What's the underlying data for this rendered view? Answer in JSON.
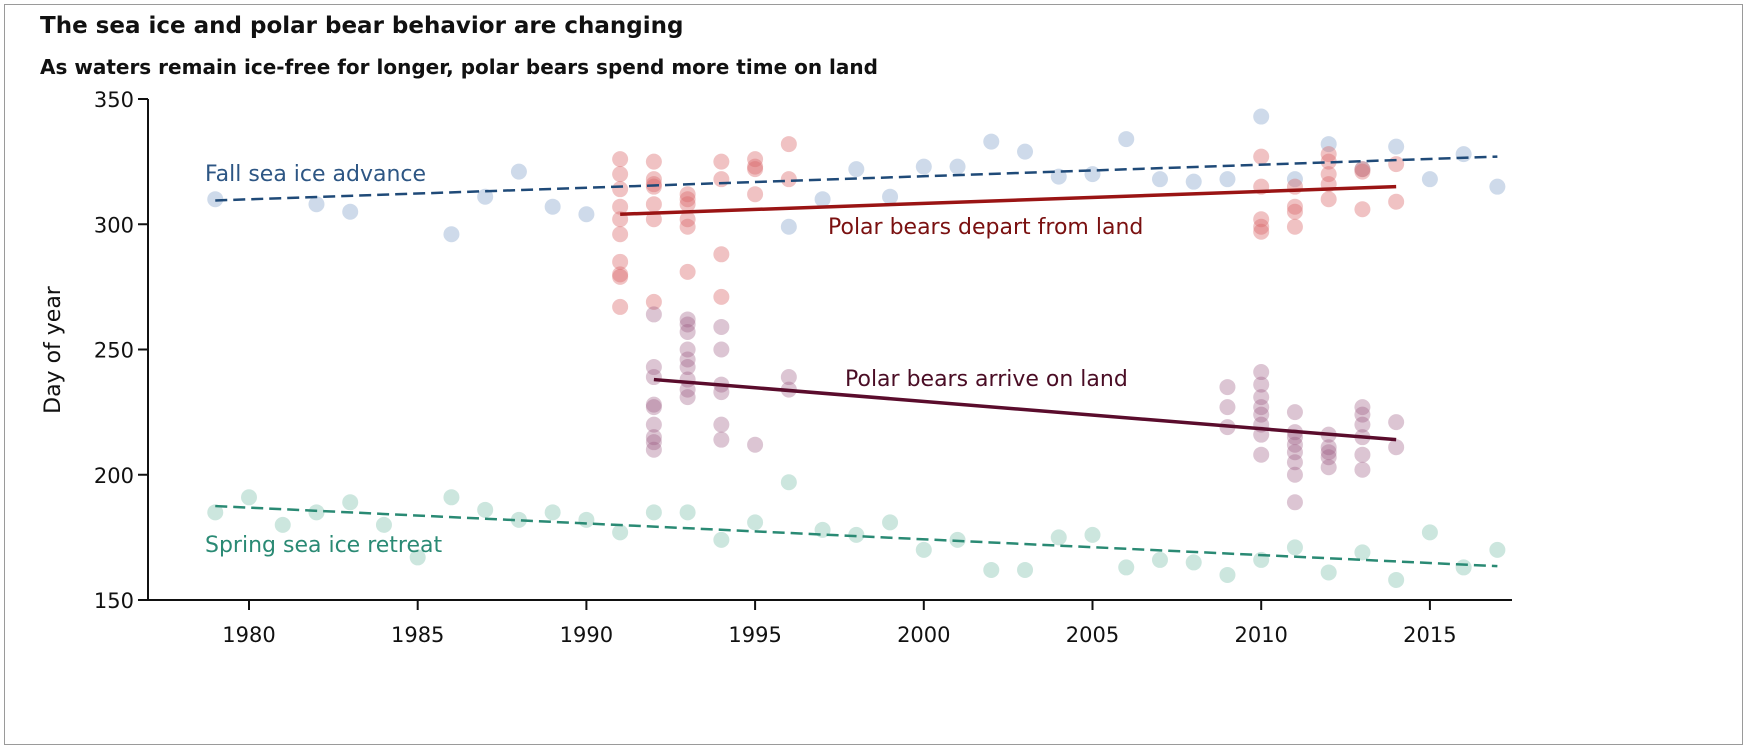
{
  "chart_data": {
    "type": "scatter",
    "title": "The sea ice and polar bear behavior are changing",
    "subtitle": "As waters remain ice-free for longer, polar bears spend more time on land",
    "xlabel": "",
    "ylabel": "Day of year",
    "xlim": [
      1977,
      2018
    ],
    "ylim": [
      150,
      350
    ],
    "xticks": [
      "1980",
      "1985",
      "1990",
      "1995",
      "2000",
      "2005",
      "2010",
      "2015"
    ],
    "yticks": [
      "150",
      "200",
      "250",
      "300",
      "350"
    ],
    "grid": false,
    "series": [
      {
        "name": "Fall sea ice advance",
        "color": "#c5d4e6",
        "trend_color": "#1f4a78",
        "trend_style": "dashed",
        "trend": [
          [
            1979,
            309.5
          ],
          [
            2017,
            327
          ]
        ],
        "points": [
          [
            1979,
            310
          ],
          [
            1982,
            308
          ],
          [
            1983,
            305
          ],
          [
            1986,
            296
          ],
          [
            1987,
            311
          ],
          [
            1988,
            321
          ],
          [
            1989,
            307
          ],
          [
            1990,
            304
          ],
          [
            1996,
            299
          ],
          [
            1997,
            310
          ],
          [
            1998,
            322
          ],
          [
            1999,
            311
          ],
          [
            2000,
            323
          ],
          [
            2001,
            323
          ],
          [
            2002,
            333
          ],
          [
            2003,
            329
          ],
          [
            2004,
            319
          ],
          [
            2005,
            320
          ],
          [
            2006,
            334
          ],
          [
            2007,
            318
          ],
          [
            2008,
            317
          ],
          [
            2009,
            318
          ],
          [
            2010,
            343
          ],
          [
            2011,
            318
          ],
          [
            2012,
            332
          ],
          [
            2013,
            322
          ],
          [
            2014,
            331
          ],
          [
            2015,
            318
          ],
          [
            2016,
            328
          ],
          [
            2017,
            315
          ]
        ]
      },
      {
        "name": "Spring sea ice retreat",
        "color": "#c3e2d8",
        "trend_color": "#2a8a74",
        "trend_style": "dashed",
        "trend": [
          [
            1979,
            187.5
          ],
          [
            2017,
            163.5
          ]
        ],
        "points": [
          [
            1979,
            185
          ],
          [
            1980,
            191
          ],
          [
            1981,
            180
          ],
          [
            1982,
            185
          ],
          [
            1983,
            189
          ],
          [
            1984,
            180
          ],
          [
            1985,
            167
          ],
          [
            1986,
            191
          ],
          [
            1987,
            186
          ],
          [
            1988,
            182
          ],
          [
            1989,
            185
          ],
          [
            1990,
            182
          ],
          [
            1991,
            177
          ],
          [
            1992,
            185
          ],
          [
            1993,
            185
          ],
          [
            1994,
            174
          ],
          [
            1995,
            181
          ],
          [
            1996,
            197
          ],
          [
            1997,
            178
          ],
          [
            1998,
            176
          ],
          [
            1999,
            181
          ],
          [
            2000,
            170
          ],
          [
            2001,
            174
          ],
          [
            2002,
            162
          ],
          [
            2003,
            162
          ],
          [
            2004,
            175
          ],
          [
            2005,
            176
          ],
          [
            2006,
            163
          ],
          [
            2007,
            166
          ],
          [
            2008,
            165
          ],
          [
            2009,
            160
          ],
          [
            2010,
            166
          ],
          [
            2011,
            171
          ],
          [
            2012,
            161
          ],
          [
            2013,
            169
          ],
          [
            2014,
            158
          ],
          [
            2015,
            177
          ],
          [
            2016,
            163
          ],
          [
            2017,
            170
          ]
        ]
      },
      {
        "name": "Polar bears depart from land",
        "color": "#d9666a",
        "trend_color": "#9a1414",
        "trend_style": "solid",
        "trend": [
          [
            1991,
            304
          ],
          [
            2014,
            315
          ]
        ],
        "points": [
          [
            1991,
            326
          ],
          [
            1991,
            320
          ],
          [
            1991,
            314
          ],
          [
            1991,
            307
          ],
          [
            1991,
            302
          ],
          [
            1991,
            296
          ],
          [
            1991,
            285
          ],
          [
            1991,
            280
          ],
          [
            1991,
            279
          ],
          [
            1991,
            267
          ],
          [
            1992,
            325
          ],
          [
            1992,
            318
          ],
          [
            1992,
            316
          ],
          [
            1992,
            315
          ],
          [
            1992,
            308
          ],
          [
            1992,
            302
          ],
          [
            1992,
            269
          ],
          [
            1993,
            312
          ],
          [
            1993,
            310
          ],
          [
            1993,
            308
          ],
          [
            1993,
            302
          ],
          [
            1993,
            299
          ],
          [
            1993,
            281
          ],
          [
            1994,
            325
          ],
          [
            1994,
            318
          ],
          [
            1994,
            288
          ],
          [
            1994,
            271
          ],
          [
            1995,
            326
          ],
          [
            1995,
            323
          ],
          [
            1995,
            322
          ],
          [
            1995,
            312
          ],
          [
            1996,
            332
          ],
          [
            1996,
            318
          ],
          [
            2010,
            327
          ],
          [
            2010,
            315
          ],
          [
            2010,
            302
          ],
          [
            2010,
            299
          ],
          [
            2010,
            297
          ],
          [
            2011,
            315
          ],
          [
            2011,
            307
          ],
          [
            2011,
            305
          ],
          [
            2011,
            299
          ],
          [
            2012,
            328
          ],
          [
            2012,
            325
          ],
          [
            2012,
            320
          ],
          [
            2012,
            316
          ],
          [
            2012,
            310
          ],
          [
            2013,
            322
          ],
          [
            2013,
            321
          ],
          [
            2013,
            306
          ],
          [
            2014,
            324
          ],
          [
            2014,
            309
          ]
        ]
      },
      {
        "name": "Polar bears arrive on land",
        "color": "#9c5a80",
        "trend_color": "#5a0c2c",
        "trend_style": "solid",
        "trend": [
          [
            1992,
            238
          ],
          [
            2014,
            214
          ]
        ],
        "points": [
          [
            1992,
            264
          ],
          [
            1992,
            243
          ],
          [
            1992,
            239
          ],
          [
            1992,
            228
          ],
          [
            1992,
            227
          ],
          [
            1992,
            220
          ],
          [
            1992,
            215
          ],
          [
            1992,
            213
          ],
          [
            1992,
            210
          ],
          [
            1993,
            262
          ],
          [
            1993,
            260
          ],
          [
            1993,
            257
          ],
          [
            1993,
            250
          ],
          [
            1993,
            246
          ],
          [
            1993,
            243
          ],
          [
            1993,
            238
          ],
          [
            1993,
            234
          ],
          [
            1993,
            231
          ],
          [
            1994,
            259
          ],
          [
            1994,
            250
          ],
          [
            1994,
            236
          ],
          [
            1994,
            233
          ],
          [
            1994,
            220
          ],
          [
            1994,
            214
          ],
          [
            1995,
            212
          ],
          [
            1996,
            239
          ],
          [
            1996,
            234
          ],
          [
            2009,
            235
          ],
          [
            2009,
            227
          ],
          [
            2009,
            219
          ],
          [
            2010,
            241
          ],
          [
            2010,
            236
          ],
          [
            2010,
            231
          ],
          [
            2010,
            227
          ],
          [
            2010,
            224
          ],
          [
            2010,
            220
          ],
          [
            2010,
            216
          ],
          [
            2010,
            208
          ],
          [
            2011,
            225
          ],
          [
            2011,
            217
          ],
          [
            2011,
            215
          ],
          [
            2011,
            212
          ],
          [
            2011,
            209
          ],
          [
            2011,
            205
          ],
          [
            2011,
            200
          ],
          [
            2011,
            189
          ],
          [
            2012,
            216
          ],
          [
            2012,
            211
          ],
          [
            2012,
            209
          ],
          [
            2012,
            207
          ],
          [
            2012,
            203
          ],
          [
            2013,
            227
          ],
          [
            2013,
            224
          ],
          [
            2013,
            220
          ],
          [
            2013,
            215
          ],
          [
            2013,
            208
          ],
          [
            2013,
            202
          ],
          [
            2014,
            221
          ],
          [
            2014,
            211
          ]
        ]
      }
    ],
    "annotations": {
      "fall": "Fall sea ice advance",
      "spring": "Spring sea ice retreat",
      "depart": "Polar bears depart from land",
      "arrive": "Polar bears arrive on land"
    }
  }
}
